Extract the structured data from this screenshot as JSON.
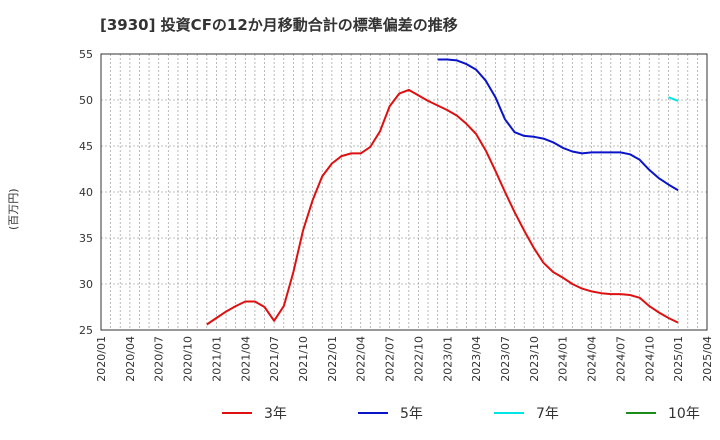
{
  "chart_data": {
    "type": "line",
    "title": "[3930]  投資CFの12か月移動合計の標準偏差の推移",
    "ylabel": "(百万円)",
    "ylim": [
      25,
      55
    ],
    "yticks": [
      25,
      30,
      35,
      40,
      45,
      50,
      55
    ],
    "xticks": [
      "2020/01",
      "2020/04",
      "2020/07",
      "2020/10",
      "2021/01",
      "2021/04",
      "2021/07",
      "2021/10",
      "2022/01",
      "2022/04",
      "2022/07",
      "2022/10",
      "2023/01",
      "2023/04",
      "2023/07",
      "2023/10",
      "2024/01",
      "2024/04",
      "2024/07",
      "2024/10",
      "2025/01",
      "2025/04"
    ],
    "grid": true,
    "legend_position": "bottom",
    "series": [
      {
        "name": "3年",
        "color": "#dd1111",
        "points": [
          [
            "2020/12",
            25.6
          ],
          [
            "2021/01",
            26.3
          ],
          [
            "2021/02",
            27.0
          ],
          [
            "2021/03",
            27.6
          ],
          [
            "2021/04",
            28.1
          ],
          [
            "2021/05",
            28.1
          ],
          [
            "2021/06",
            27.5
          ],
          [
            "2021/07",
            26.0
          ],
          [
            "2021/08",
            27.6
          ],
          [
            "2021/09",
            31.3
          ],
          [
            "2021/10",
            35.8
          ],
          [
            "2021/11",
            39.1
          ],
          [
            "2021/12",
            41.7
          ],
          [
            "2022/01",
            43.1
          ],
          [
            "2022/02",
            43.9
          ],
          [
            "2022/03",
            44.2
          ],
          [
            "2022/04",
            44.2
          ],
          [
            "2022/05",
            44.9
          ],
          [
            "2022/06",
            46.6
          ],
          [
            "2022/07",
            49.3
          ],
          [
            "2022/08",
            50.7
          ],
          [
            "2022/09",
            51.1
          ],
          [
            "2022/10",
            50.5
          ],
          [
            "2022/11",
            49.9
          ],
          [
            "2022/12",
            49.4
          ],
          [
            "2023/01",
            48.9
          ],
          [
            "2023/02",
            48.3
          ],
          [
            "2023/03",
            47.4
          ],
          [
            "2023/04",
            46.3
          ],
          [
            "2023/05",
            44.5
          ],
          [
            "2023/06",
            42.3
          ],
          [
            "2023/07",
            40.0
          ],
          [
            "2023/08",
            37.8
          ],
          [
            "2023/09",
            35.8
          ],
          [
            "2023/10",
            33.9
          ],
          [
            "2023/11",
            32.3
          ],
          [
            "2023/12",
            31.3
          ],
          [
            "2024/01",
            30.7
          ],
          [
            "2024/02",
            30.0
          ],
          [
            "2024/03",
            29.5
          ],
          [
            "2024/04",
            29.2
          ],
          [
            "2024/05",
            29.0
          ],
          [
            "2024/06",
            28.9
          ],
          [
            "2024/07",
            28.9
          ],
          [
            "2024/08",
            28.8
          ],
          [
            "2024/09",
            28.5
          ],
          [
            "2024/10",
            27.6
          ],
          [
            "2024/11",
            26.9
          ],
          [
            "2024/12",
            26.3
          ],
          [
            "2025/01",
            25.8
          ]
        ]
      },
      {
        "name": "5年",
        "color": "#0a14c8",
        "points": [
          [
            "2022/12",
            54.4
          ],
          [
            "2023/01",
            54.4
          ],
          [
            "2023/02",
            54.3
          ],
          [
            "2023/03",
            53.9
          ],
          [
            "2023/04",
            53.3
          ],
          [
            "2023/05",
            52.1
          ],
          [
            "2023/06",
            50.3
          ],
          [
            "2023/07",
            47.9
          ],
          [
            "2023/08",
            46.5
          ],
          [
            "2023/09",
            46.1
          ],
          [
            "2023/10",
            46.0
          ],
          [
            "2023/11",
            45.8
          ],
          [
            "2023/12",
            45.4
          ],
          [
            "2024/01",
            44.8
          ],
          [
            "2024/02",
            44.4
          ],
          [
            "2024/03",
            44.2
          ],
          [
            "2024/04",
            44.3
          ],
          [
            "2024/05",
            44.3
          ],
          [
            "2024/06",
            44.3
          ],
          [
            "2024/07",
            44.3
          ],
          [
            "2024/08",
            44.1
          ],
          [
            "2024/09",
            43.5
          ],
          [
            "2024/10",
            42.4
          ],
          [
            "2024/11",
            41.5
          ],
          [
            "2024/12",
            40.8
          ],
          [
            "2025/01",
            40.2
          ]
        ]
      },
      {
        "name": "7年",
        "color": "#00e6e6",
        "points": [
          [
            "2024/12",
            50.3
          ],
          [
            "2025/01",
            49.9
          ]
        ]
      },
      {
        "name": "10年",
        "color": "#1a8c1a",
        "points": []
      }
    ]
  }
}
